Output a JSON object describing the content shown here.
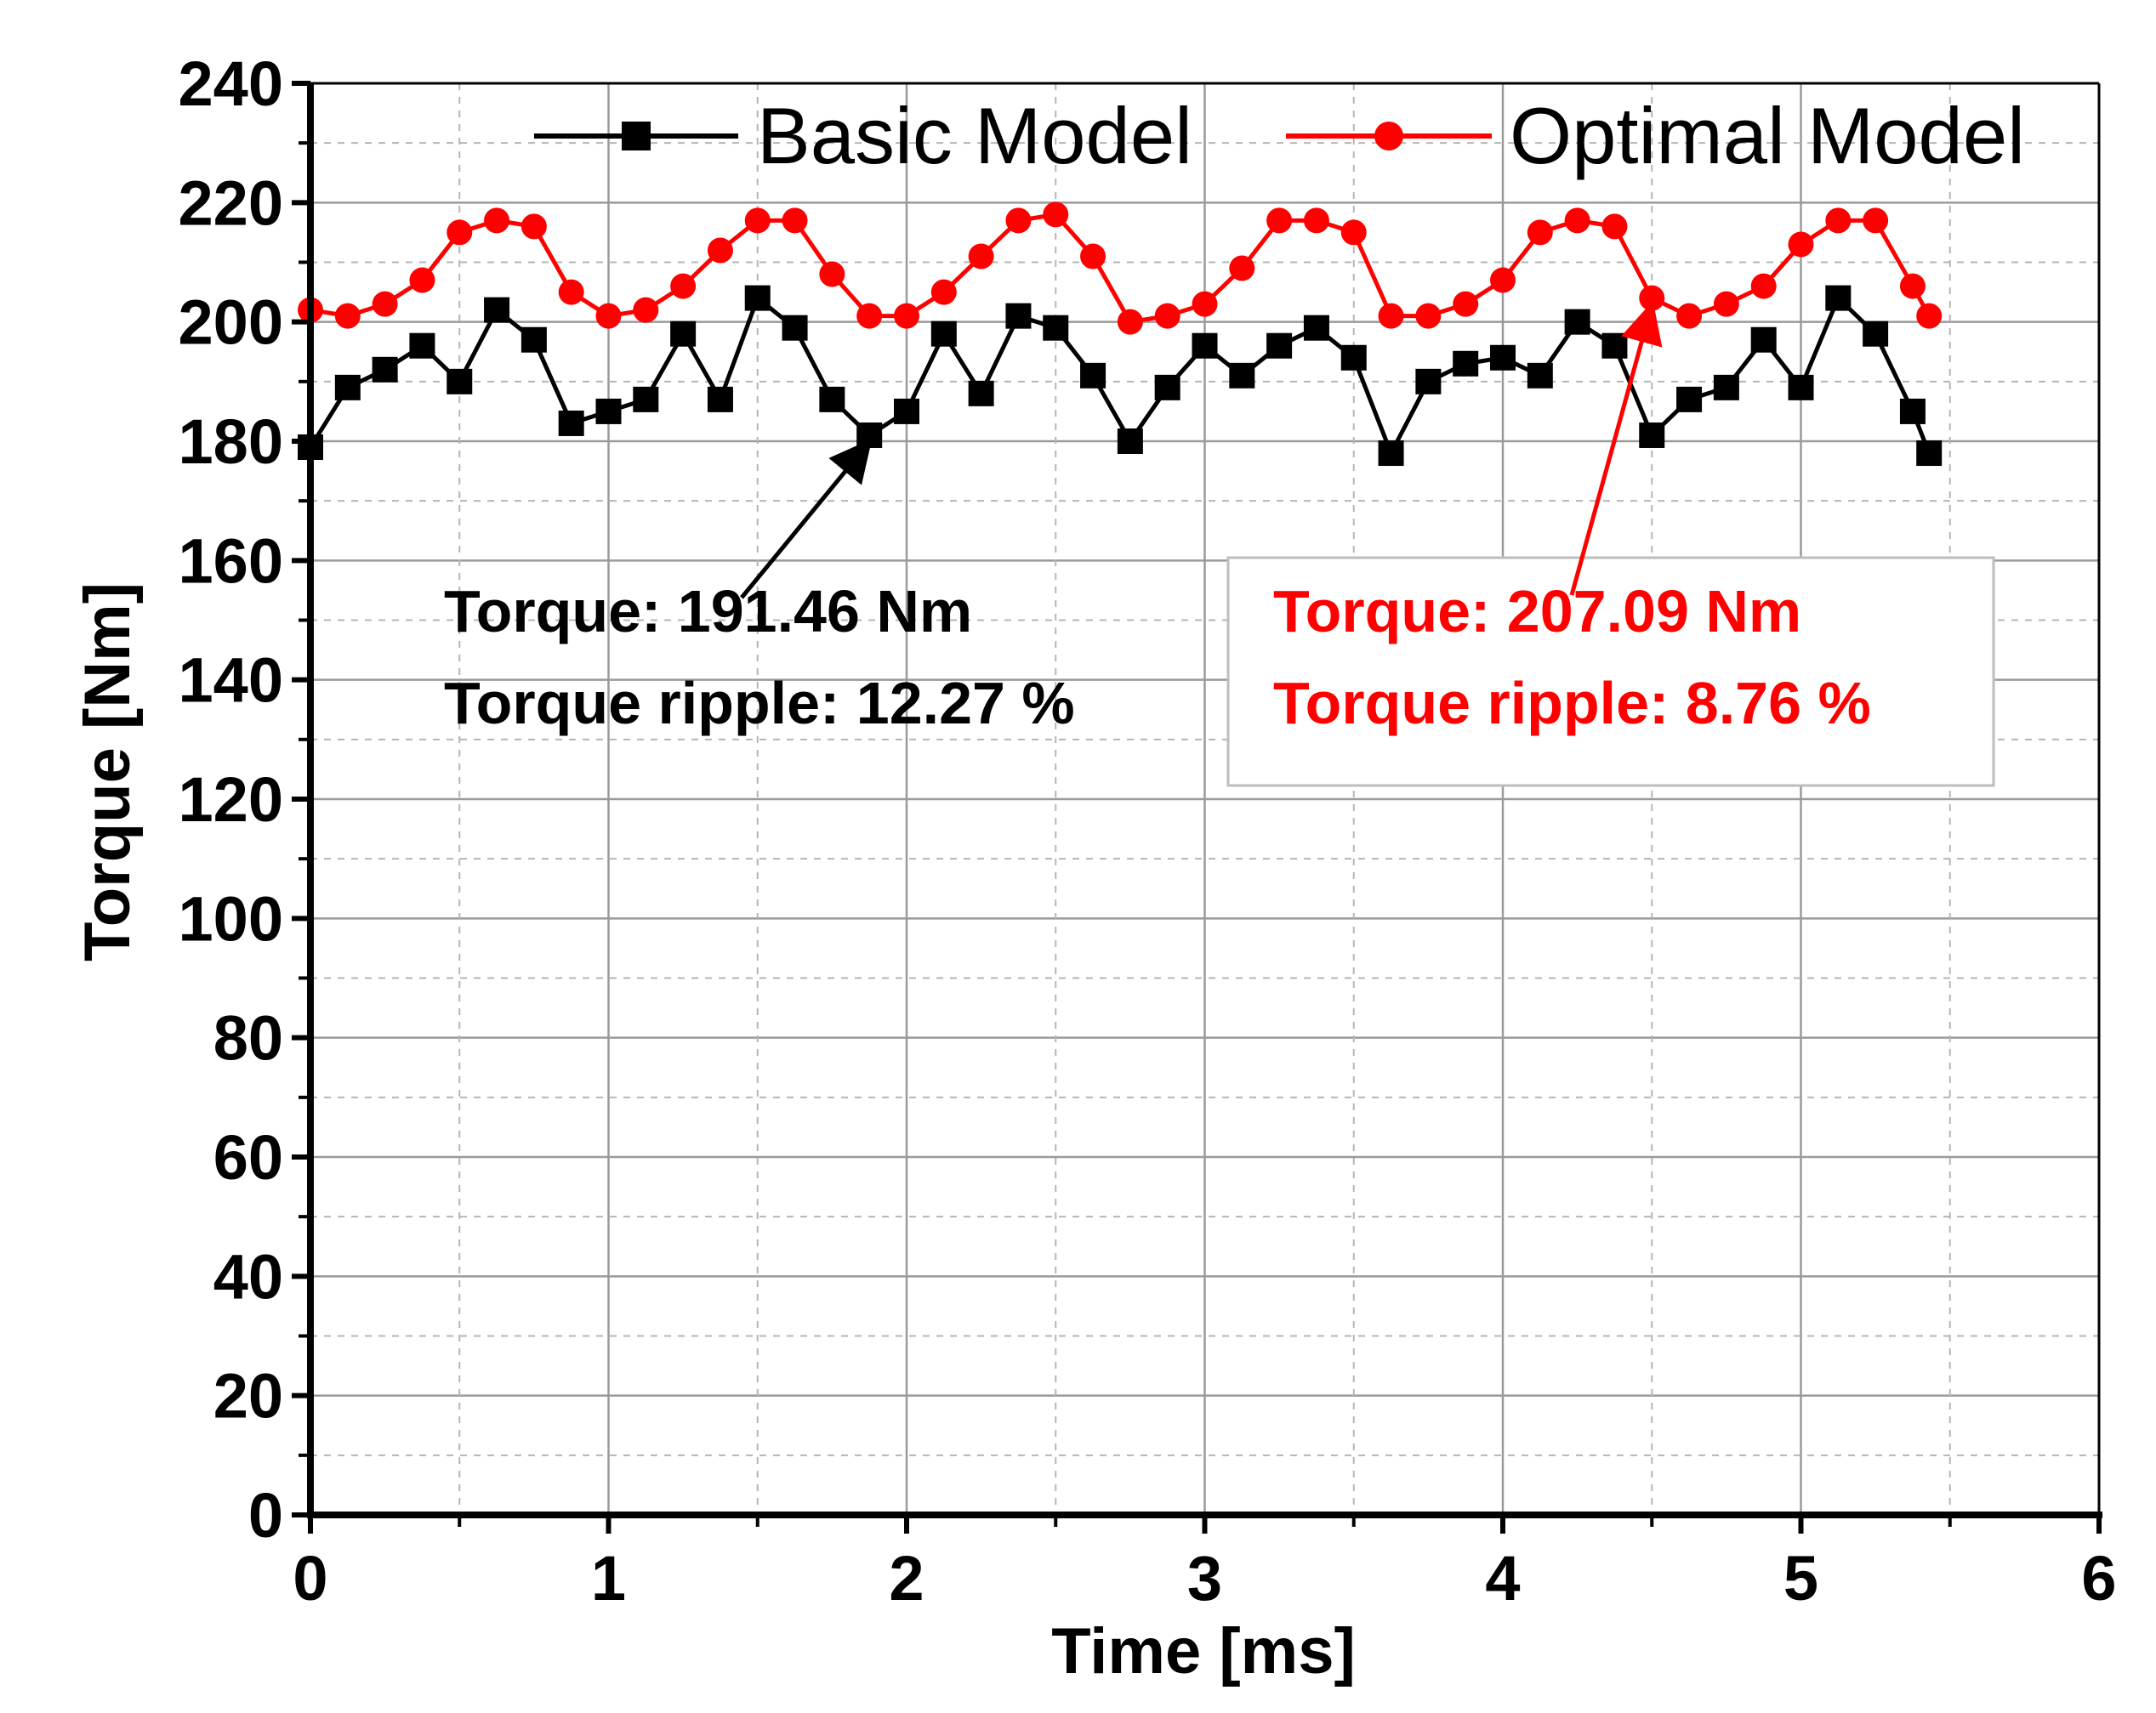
{
  "chart_data": {
    "type": "line",
    "title": "",
    "xlabel": "Time [ms]",
    "ylabel": "Torque [Nm]",
    "xlim": [
      0,
      6
    ],
    "ylim": [
      0,
      240
    ],
    "x_ticks": [
      0,
      1,
      2,
      3,
      4,
      5,
      6
    ],
    "y_ticks": [
      0,
      20,
      40,
      60,
      80,
      100,
      120,
      140,
      160,
      180,
      200,
      220,
      240
    ],
    "x_tick_labels": [
      "0",
      "1",
      "2",
      "3",
      "4",
      "5",
      "6"
    ],
    "y_tick_labels": [
      "0",
      "20",
      "40",
      "60",
      "80",
      "100",
      "120",
      "140",
      "160",
      "180",
      "200",
      "220",
      "240"
    ],
    "grid": true,
    "legend_position": "top",
    "x": [
      0,
      0.125,
      0.25,
      0.375,
      0.5,
      0.625,
      0.75,
      0.875,
      1.0,
      1.125,
      1.25,
      1.375,
      1.5,
      1.625,
      1.75,
      1.875,
      2.0,
      2.125,
      2.25,
      2.375,
      2.5,
      2.625,
      2.75,
      2.875,
      3.0,
      3.125,
      3.25,
      3.375,
      3.5,
      3.625,
      3.75,
      3.875,
      4.0,
      4.125,
      4.25,
      4.375,
      4.5,
      4.625,
      4.75,
      4.875,
      5.0,
      5.125,
      5.25,
      5.375,
      5.43
    ],
    "series": [
      {
        "name": "Basic Model",
        "color": "#000000",
        "marker": "square",
        "values": [
          179,
          189,
          192,
          196,
          190,
          202,
          197,
          183,
          185,
          187,
          198,
          187,
          204,
          199,
          187,
          181,
          185,
          198,
          188,
          201,
          199,
          191,
          180,
          189,
          196,
          191,
          196,
          199,
          194,
          178,
          190,
          193,
          194,
          191,
          200,
          196,
          181,
          187,
          189,
          197,
          189,
          204,
          198,
          185,
          178
        ]
      },
      {
        "name": "Optimal Model",
        "color": "#ff0000",
        "marker": "circle",
        "values": [
          202,
          201,
          203,
          207,
          215,
          217,
          216,
          205,
          201,
          202,
          206,
          212,
          217,
          217,
          208,
          201,
          201,
          205,
          211,
          217,
          218,
          211,
          200,
          201,
          203,
          209,
          217,
          217,
          215,
          201,
          201,
          203,
          207,
          215,
          217,
          216,
          204,
          201,
          203,
          206,
          213,
          217,
          217,
          206,
          201
        ]
      }
    ],
    "annotations": [
      {
        "series": "Basic Model",
        "color": "#000000",
        "lines": [
          "Torque: 191.46 Nm",
          "Torque ripple: 12.27 %"
        ],
        "arrow_target": [
          1.875,
          181
        ]
      },
      {
        "series": "Optimal Model",
        "color": "#ff0000",
        "lines": [
          "Torque: 207.09 Nm",
          "Torque ripple: 8.76 %"
        ],
        "arrow_target": [
          4.5,
          204
        ]
      }
    ]
  }
}
